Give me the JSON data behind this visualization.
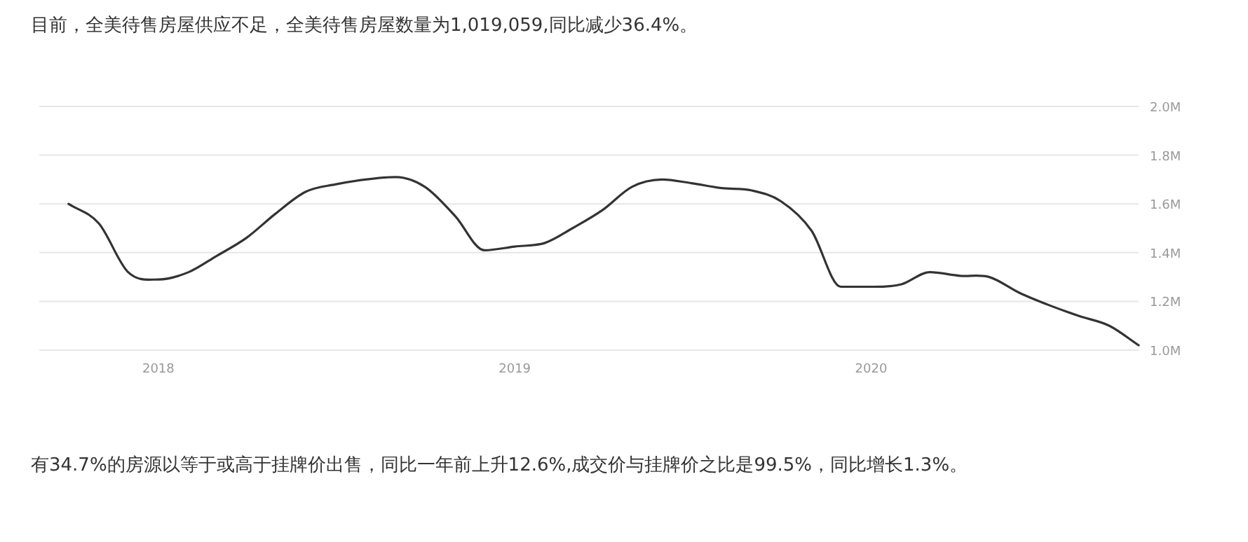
{
  "chart_data": {
    "type": "line",
    "title": "目前，全美待售房屋供应不足，全美待售房屋数量为1,019,059,同比减少36.4%。",
    "annotations": [
      "有34.7%的房源以等于或高于挂牌价出售，同比一年前上升12.6%,成交价与挂牌价之比是99.5%，同比增长1.3%。"
    ],
    "x": [
      "2017-10",
      "2017-11",
      "2017-12",
      "2018-01",
      "2018-02",
      "2018-03",
      "2018-04",
      "2018-05",
      "2018-06",
      "2018-07",
      "2018-08",
      "2018-09",
      "2018-10",
      "2018-11",
      "2018-12",
      "2019-01",
      "2019-02",
      "2019-03",
      "2019-04",
      "2019-05",
      "2019-06",
      "2019-07",
      "2019-08",
      "2019-09",
      "2019-10",
      "2019-11",
      "2019-12",
      "2020-01",
      "2020-02",
      "2020-03",
      "2020-04",
      "2020-05",
      "2020-06",
      "2020-07",
      "2020-08",
      "2020-09",
      "2020-10"
    ],
    "series": [
      {
        "color": "#333333",
        "values": [
          1.6,
          1.52,
          1.32,
          1.29,
          1.32,
          1.385,
          1.46,
          1.56,
          1.65,
          1.68,
          1.7,
          1.71,
          1.67,
          1.55,
          1.41,
          1.425,
          1.44,
          1.5,
          1.575,
          1.67,
          1.7,
          1.685,
          1.665,
          1.655,
          1.61,
          1.49,
          1.26,
          1.26,
          1.27,
          1.32,
          1.305,
          1.3,
          1.235,
          1.185,
          1.14,
          1.1,
          1.02
        ]
      }
    ],
    "xlim": [
      "2017-09",
      "2020-10"
    ],
    "xticks": [
      {
        "value": "2018-01",
        "label": "2018"
      },
      {
        "value": "2019-01",
        "label": "2019"
      },
      {
        "value": "2020-01",
        "label": "2020"
      }
    ],
    "ylim": [
      1.0,
      2.0
    ],
    "yticks": [
      {
        "value": 1.0,
        "label": "1.0M"
      },
      {
        "value": 1.2,
        "label": "1.2M"
      },
      {
        "value": 1.4,
        "label": "1.4M"
      },
      {
        "value": 1.6,
        "label": "1.6M"
      },
      {
        "value": 1.8,
        "label": "1.8M"
      },
      {
        "value": 2.0,
        "label": "2.0M"
      }
    ],
    "grid": "y",
    "marker": "none",
    "line_style": "solid"
  }
}
